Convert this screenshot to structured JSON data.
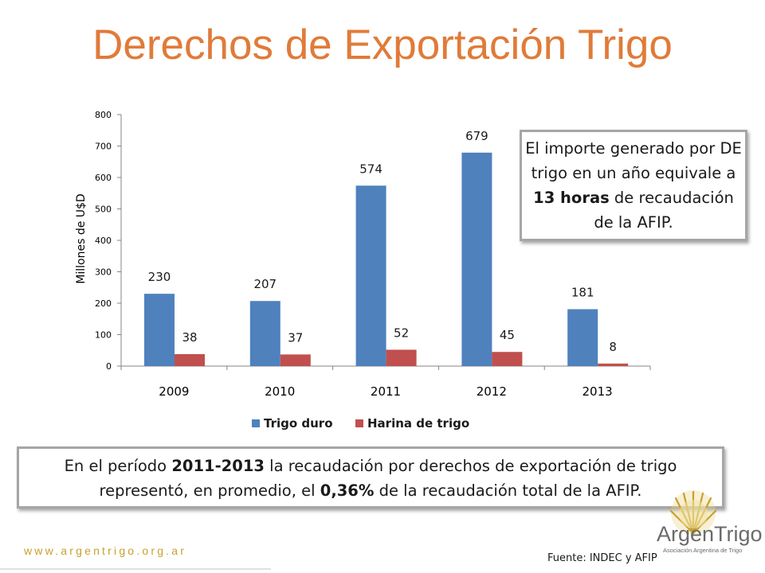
{
  "slide": {
    "title": "Derechos de Exportación Trigo",
    "url": "www.argentrigo.org.ar",
    "source": "Fuente: INDEC y AFIP"
  },
  "callouts": {
    "top": {
      "p1": "El importe generado por DE trigo en un año equivale a ",
      "bold": "13 horas",
      "p2": " de recaudación de la AFIP."
    },
    "bottom": {
      "p1": "En el período ",
      "b1": "2011-2013",
      "p2": " la recaudación por derechos de exportación de trigo representó, en promedio, el ",
      "b2": "0,36%",
      "p3": " de la recaudación total de la AFIP."
    }
  },
  "logo": {
    "name": "ArgenTrigo",
    "tagline": "Asociación Argentina de Trigo"
  },
  "colors": {
    "title": "#e07b39",
    "series1": "#4f81bd",
    "series2": "#c0504d",
    "url": "#c9a02a"
  },
  "chart_data": {
    "type": "bar",
    "categories": [
      "2009",
      "2010",
      "2011",
      "2012",
      "2013"
    ],
    "series": [
      {
        "name": "Trigo duro",
        "values": [
          230,
          207,
          574,
          679,
          181
        ]
      },
      {
        "name": "Harina de trigo",
        "values": [
          38,
          37,
          52,
          45,
          8
        ]
      }
    ],
    "ylabel": "Millones de U$D",
    "ylim": [
      0,
      800
    ],
    "yticks": [
      0,
      100,
      200,
      300,
      400,
      500,
      600,
      700,
      800
    ],
    "grid": false,
    "legend": "bottom"
  }
}
